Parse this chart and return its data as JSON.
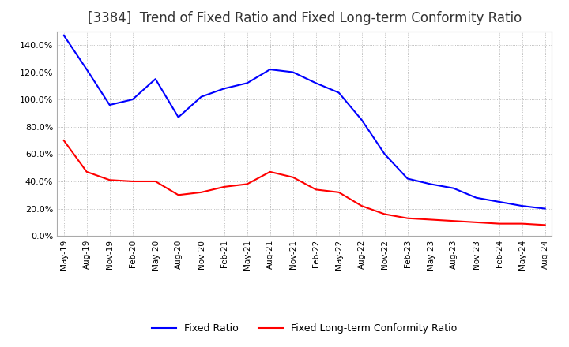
{
  "title": "[3384]  Trend of Fixed Ratio and Fixed Long-term Conformity Ratio",
  "title_fontsize": 12,
  "x_labels": [
    "May-19",
    "Aug-19",
    "Nov-19",
    "Feb-20",
    "May-20",
    "Aug-20",
    "Nov-20",
    "Feb-21",
    "May-21",
    "Aug-21",
    "Nov-21",
    "Feb-22",
    "May-22",
    "Aug-22",
    "Nov-22",
    "Feb-23",
    "May-23",
    "Aug-23",
    "Nov-23",
    "Feb-24",
    "May-24",
    "Aug-24"
  ],
  "fixed_ratio": [
    147,
    122,
    96,
    100,
    115,
    87,
    102,
    108,
    112,
    122,
    120,
    112,
    105,
    85,
    60,
    42,
    38,
    35,
    28,
    25,
    22,
    20
  ],
  "fixed_lt_ratio": [
    70,
    47,
    41,
    40,
    40,
    30,
    32,
    36,
    38,
    47,
    43,
    34,
    32,
    22,
    16,
    13,
    12,
    11,
    10,
    9,
    9,
    8
  ],
  "fixed_ratio_color": "#0000ff",
  "fixed_lt_ratio_color": "#ff0000",
  "ylim": [
    0,
    150
  ],
  "yticks": [
    0,
    20,
    40,
    60,
    80,
    100,
    120,
    140
  ],
  "grid_color": "#aaaaaa",
  "background_color": "#ffffff",
  "legend_labels": [
    "Fixed Ratio",
    "Fixed Long-term Conformity Ratio"
  ]
}
